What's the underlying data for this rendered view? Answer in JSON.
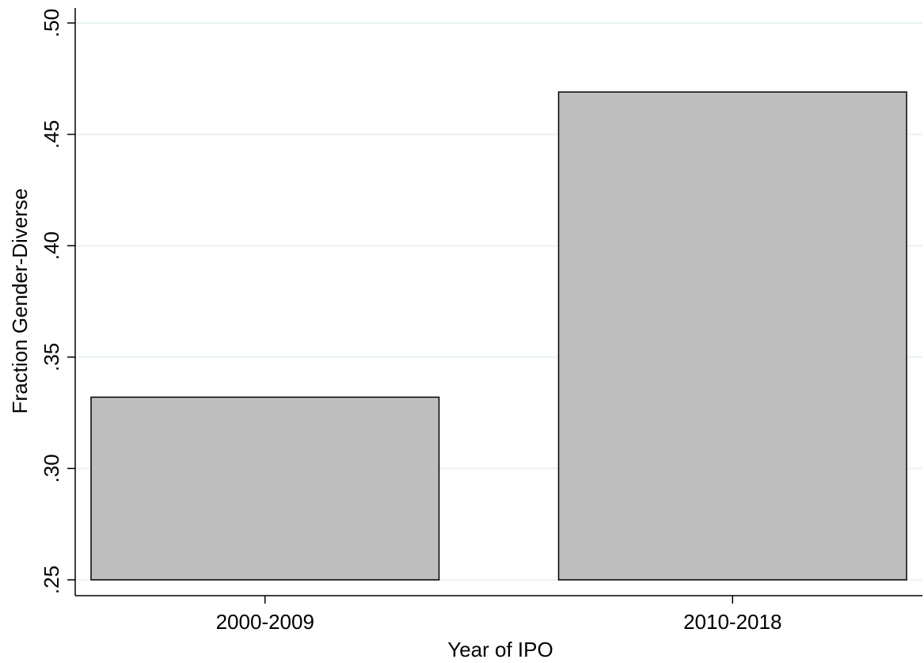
{
  "chart_data": {
    "type": "bar",
    "ylabel": "Fraction Gender-Diverse",
    "xlabel": "Year of IPO",
    "categories": [
      "2000-2009",
      "2010-2018"
    ],
    "values": [
      0.332,
      0.469
    ],
    "color": "#bebebe",
    "ylim": [
      0.25,
      0.5
    ],
    "yticks": [
      {
        "value": 0.25,
        "label": ".25"
      },
      {
        "value": 0.3,
        "label": ".30"
      },
      {
        "value": 0.35,
        "label": ".35"
      },
      {
        "value": 0.4,
        "label": ".40"
      },
      {
        "value": 0.45,
        "label": ".45"
      },
      {
        "value": 0.5,
        "label": ".50"
      }
    ],
    "grid": true
  }
}
